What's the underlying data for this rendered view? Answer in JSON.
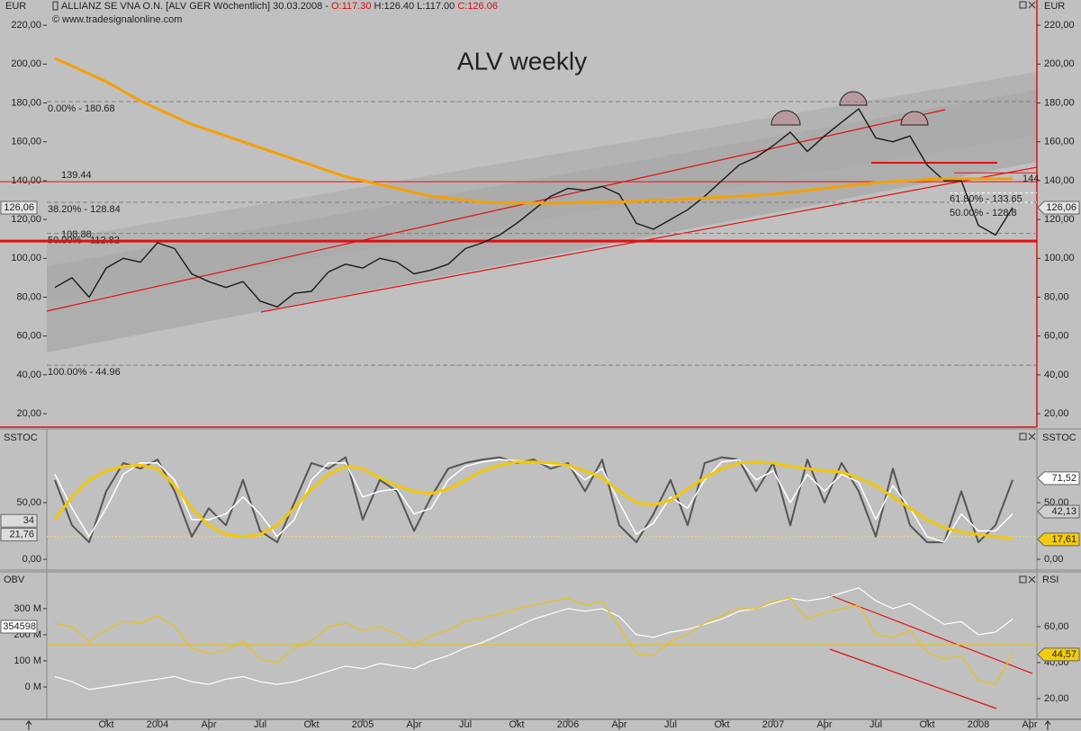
{
  "header": {
    "currency": "EUR",
    "title": "ALLIANZ SE VNA O.N. [ALV GER  Wöchentlich] 30.03.2008 -",
    "open": "O:117.30",
    "high": "H:126.40",
    "low": "L:117.00",
    "close": "C:126.06",
    "copyright": "© www.tradesignalonline.com"
  },
  "chart_data": [
    {
      "type": "line",
      "title": "ALV weekly",
      "y_label": "EUR",
      "categories": [
        null,
        null,
        null,
        "Okt",
        null,
        null,
        "2004",
        null,
        null,
        "Apr",
        null,
        null,
        "Jul",
        null,
        null,
        "Okt",
        null,
        null,
        "2005",
        null,
        null,
        "Apr",
        null,
        null,
        "Jul",
        null,
        null,
        "Okt",
        null,
        null,
        "2006",
        null,
        null,
        "Apr",
        null,
        null,
        "Jul",
        null,
        null,
        "Okt",
        null,
        null,
        "2007",
        null,
        null,
        "Apr",
        null,
        null,
        "Jul",
        null,
        null,
        "Okt",
        null,
        null,
        "2008",
        null,
        null,
        "Apr"
      ],
      "series": [
        {
          "color": "#1a1a1a",
          "width": 1.4,
          "values": [
            85,
            90,
            80,
            95,
            100,
            98,
            108,
            105,
            92,
            88,
            85,
            88,
            78,
            75,
            82,
            83,
            93,
            97,
            95,
            100,
            98,
            92,
            94,
            97,
            105,
            108,
            112,
            118,
            125,
            132,
            136,
            135,
            137,
            133,
            118,
            115,
            120,
            125,
            132,
            140,
            148,
            152,
            158,
            165,
            155,
            163,
            170,
            177,
            162,
            160,
            163,
            148,
            140,
            140,
            117,
            112,
            126.06,
            null
          ]
        },
        {
          "color": "#f5a000",
          "width": 3,
          "values": [
            203,
            199,
            195,
            191,
            186,
            181,
            177,
            173,
            169,
            166,
            163,
            160,
            157,
            154,
            151,
            148,
            145,
            142,
            140,
            138,
            136,
            134,
            132,
            131,
            130,
            129,
            128.5,
            128.5,
            128.5,
            128.5,
            128.5,
            129,
            129,
            129,
            129.5,
            130,
            130,
            130.5,
            131,
            131.5,
            132,
            132.5,
            133,
            134,
            135,
            136,
            137,
            138,
            139,
            139.5,
            140,
            140.5,
            141,
            141,
            141,
            141,
            141,
            null
          ]
        }
      ],
      "ylim": [
        13.1,
        229.3
      ],
      "yticks": [
        {
          "value": 20,
          "label": "20,00"
        },
        {
          "value": 40,
          "label": "40,00"
        },
        {
          "value": 60,
          "label": "60,00"
        },
        {
          "value": 80,
          "label": "80,00"
        },
        {
          "value": 100,
          "label": "100,00"
        },
        {
          "value": 120,
          "label": "120,00"
        },
        {
          "value": 140,
          "label": "140,00"
        },
        {
          "value": 160,
          "label": "160,00"
        },
        {
          "value": 180,
          "label": "180,00"
        },
        {
          "value": 200,
          "label": "200,00"
        },
        {
          "value": 220,
          "label": "220,00"
        }
      ],
      "fib_levels": [
        {
          "value": 180.68,
          "label": "0.00% - 180.68"
        },
        {
          "value": 128.84,
          "label": "38.20% - 128.84"
        },
        {
          "value": 112.82,
          "label": "50.00% - 112.82"
        },
        {
          "value": 44.96,
          "label": "100.00% - 44.96"
        }
      ],
      "fib_levels_right": [
        {
          "value": 133.65,
          "label": "61.80% - 133.65"
        },
        {
          "value": 128.8,
          "label": "50.00% - 128.8"
        }
      ],
      "levels": [
        139.44,
        108.88
      ],
      "level_widths": [
        1,
        3
      ],
      "level_color": "#e01010",
      "right_levels": [
        144
      ],
      "last": {
        "value": 126.06,
        "label": "126,06",
        "color": "#e4e4e4"
      }
    },
    {
      "type": "line",
      "y_label": "SSTOC",
      "series": [
        {
          "color": "#555555",
          "width": 2,
          "values": [
            70,
            30,
            15,
            60,
            85,
            80,
            88,
            60,
            20,
            45,
            30,
            70,
            25,
            15,
            50,
            85,
            80,
            90,
            35,
            70,
            60,
            25,
            55,
            80,
            85,
            88,
            90,
            85,
            88,
            80,
            85,
            60,
            88,
            30,
            15,
            40,
            70,
            30,
            85,
            90,
            88,
            60,
            85,
            30,
            88,
            50,
            85,
            60,
            20,
            80,
            30,
            15,
            15,
            60,
            15,
            30,
            70,
            null
          ]
        },
        {
          "color": "#ffffff",
          "width": 1.5,
          "values": [
            75,
            45,
            20,
            45,
            75,
            85,
            85,
            70,
            35,
            35,
            40,
            55,
            40,
            20,
            35,
            70,
            85,
            85,
            55,
            60,
            62,
            40,
            45,
            70,
            82,
            86,
            88,
            87,
            86,
            83,
            83,
            70,
            80,
            50,
            22,
            32,
            55,
            45,
            70,
            86,
            88,
            70,
            78,
            50,
            75,
            60,
            75,
            68,
            35,
            65,
            45,
            20,
            15,
            40,
            25,
            25,
            40,
            null
          ]
        },
        {
          "color": "#f2c800",
          "width": 3,
          "values": [
            35,
            55,
            70,
            78,
            82,
            83,
            80,
            65,
            45,
            30,
            22,
            20,
            22,
            30,
            45,
            62,
            75,
            82,
            80,
            72,
            65,
            60,
            58,
            62,
            70,
            78,
            83,
            86,
            86,
            85,
            83,
            78,
            72,
            60,
            50,
            48,
            52,
            62,
            72,
            80,
            85,
            86,
            85,
            82,
            80,
            78,
            77,
            72,
            65,
            55,
            45,
            35,
            28,
            24,
            22,
            20,
            18,
            null
          ]
        }
      ],
      "ylim": [
        -7.9,
        112.7
      ],
      "yticks": [
        {
          "value": 0,
          "label": "0,00"
        },
        {
          "value": 50,
          "label": "50,00"
        }
      ],
      "reference_lines": [
        20
      ],
      "left_badges": [
        {
          "value": 34,
          "color": "#dcdcdc"
        },
        {
          "value": 21.76,
          "label": "21,76",
          "color": "#dcdcdc"
        }
      ],
      "right_badges": [
        {
          "value": 71.52,
          "label": "71,52",
          "color": "#ffffff"
        },
        {
          "value": 42.13,
          "label": "42,13",
          "color": "#cfcfcf"
        },
        {
          "value": 17.61,
          "label": "17,61",
          "color": "#f2cc10"
        }
      ]
    },
    {
      "type": "line",
      "y_label": "OBV",
      "y2_label": "RSI",
      "series": [
        {
          "color": "#ffffff",
          "width": 1.2,
          "values": [
            40000000,
            20000000,
            -10000000,
            0,
            10000000,
            20000000,
            30000000,
            40000000,
            20000000,
            10000000,
            30000000,
            40000000,
            20000000,
            10000000,
            20000000,
            40000000,
            60000000,
            80000000,
            70000000,
            90000000,
            80000000,
            70000000,
            100000000,
            120000000,
            150000000,
            170000000,
            200000000,
            230000000,
            260000000,
            280000000,
            300000000,
            290000000,
            300000000,
            270000000,
            200000000,
            190000000,
            210000000,
            220000000,
            240000000,
            260000000,
            290000000,
            300000000,
            320000000,
            340000000,
            330000000,
            340000000,
            360000000,
            380000000,
            330000000,
            300000000,
            320000000,
            280000000,
            240000000,
            250000000,
            200000000,
            210000000,
            260000000,
            null
          ]
        },
        {
          "color": "#e8c020",
          "width": 1.3,
          "axis": "y2",
          "values": [
            62,
            60,
            52,
            58,
            63,
            62,
            66,
            60,
            48,
            45,
            47,
            52,
            42,
            40,
            48,
            52,
            60,
            62,
            58,
            60,
            56,
            50,
            55,
            58,
            63,
            65,
            67,
            70,
            72,
            74,
            76,
            72,
            74,
            60,
            45,
            44,
            52,
            56,
            62,
            66,
            70,
            70,
            74,
            76,
            64,
            68,
            70,
            72,
            56,
            54,
            58,
            46,
            42,
            44,
            30,
            28,
            45,
            null
          ]
        }
      ],
      "ylim": [
        -124000000,
        434000000
      ],
      "yticks": [
        {
          "value": 0,
          "label": "0 M"
        },
        {
          "value": 100000000,
          "label": "100 M"
        },
        {
          "value": 200000000,
          "label": "200 M"
        },
        {
          "value": 300000000,
          "label": "300 M"
        }
      ],
      "y2lim": [
        8.5,
        89.5
      ],
      "y2ticks": [
        {
          "value": 20,
          "label": "20,00"
        },
        {
          "value": 40,
          "label": "40,00"
        },
        {
          "value": 60,
          "label": "60,00"
        }
      ],
      "y2_reference_lines": [
        50
      ],
      "right_badges": [
        {
          "value": 44.57,
          "label": "44,57",
          "color": "#f2cc10"
        }
      ],
      "obv_last": 354598
    }
  ]
}
